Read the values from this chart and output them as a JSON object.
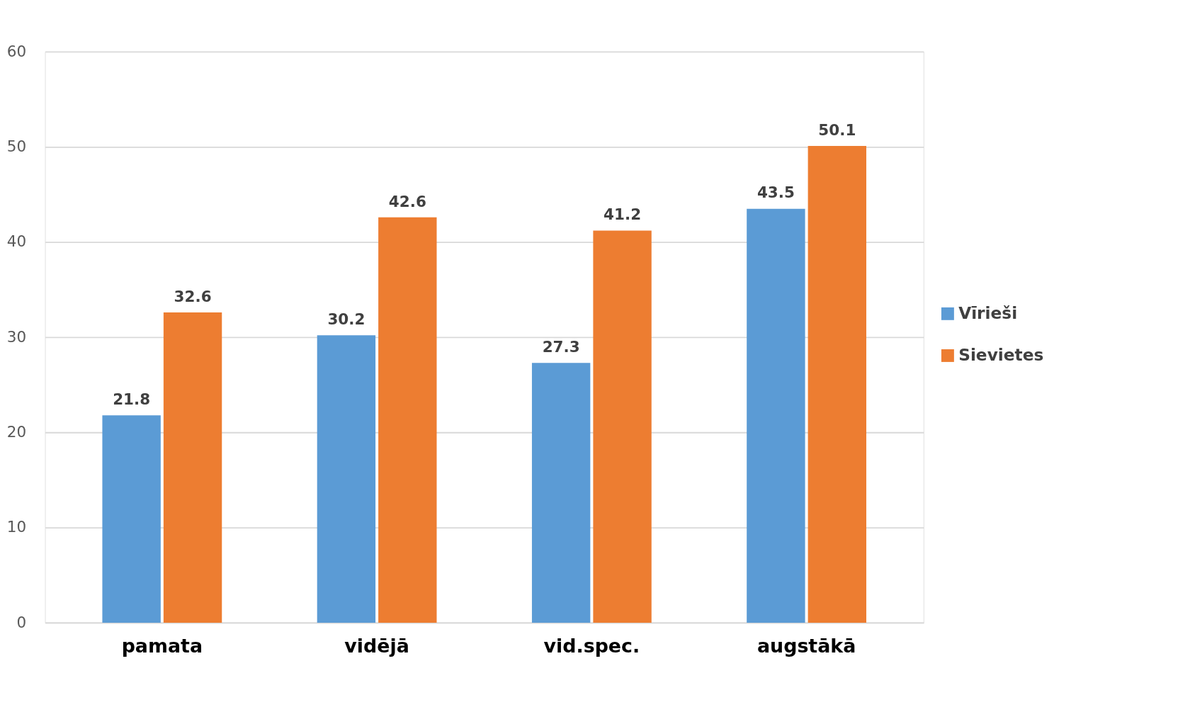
{
  "chart_data": {
    "type": "bar",
    "categories": [
      "pamata",
      "vidējā",
      "vid.spec.",
      "augstākā"
    ],
    "series": [
      {
        "name": "Vīrieši",
        "color": "#5b9bd5",
        "values": [
          21.8,
          30.2,
          27.3,
          43.5
        ]
      },
      {
        "name": "Sievietes",
        "color": "#ed7d31",
        "values": [
          32.6,
          42.6,
          41.2,
          50.1
        ]
      }
    ],
    "ylim": [
      0,
      60
    ],
    "yticks": [
      0,
      10,
      20,
      30,
      40,
      50,
      60
    ],
    "grid": "y",
    "legend": "right",
    "data_labels": true
  }
}
